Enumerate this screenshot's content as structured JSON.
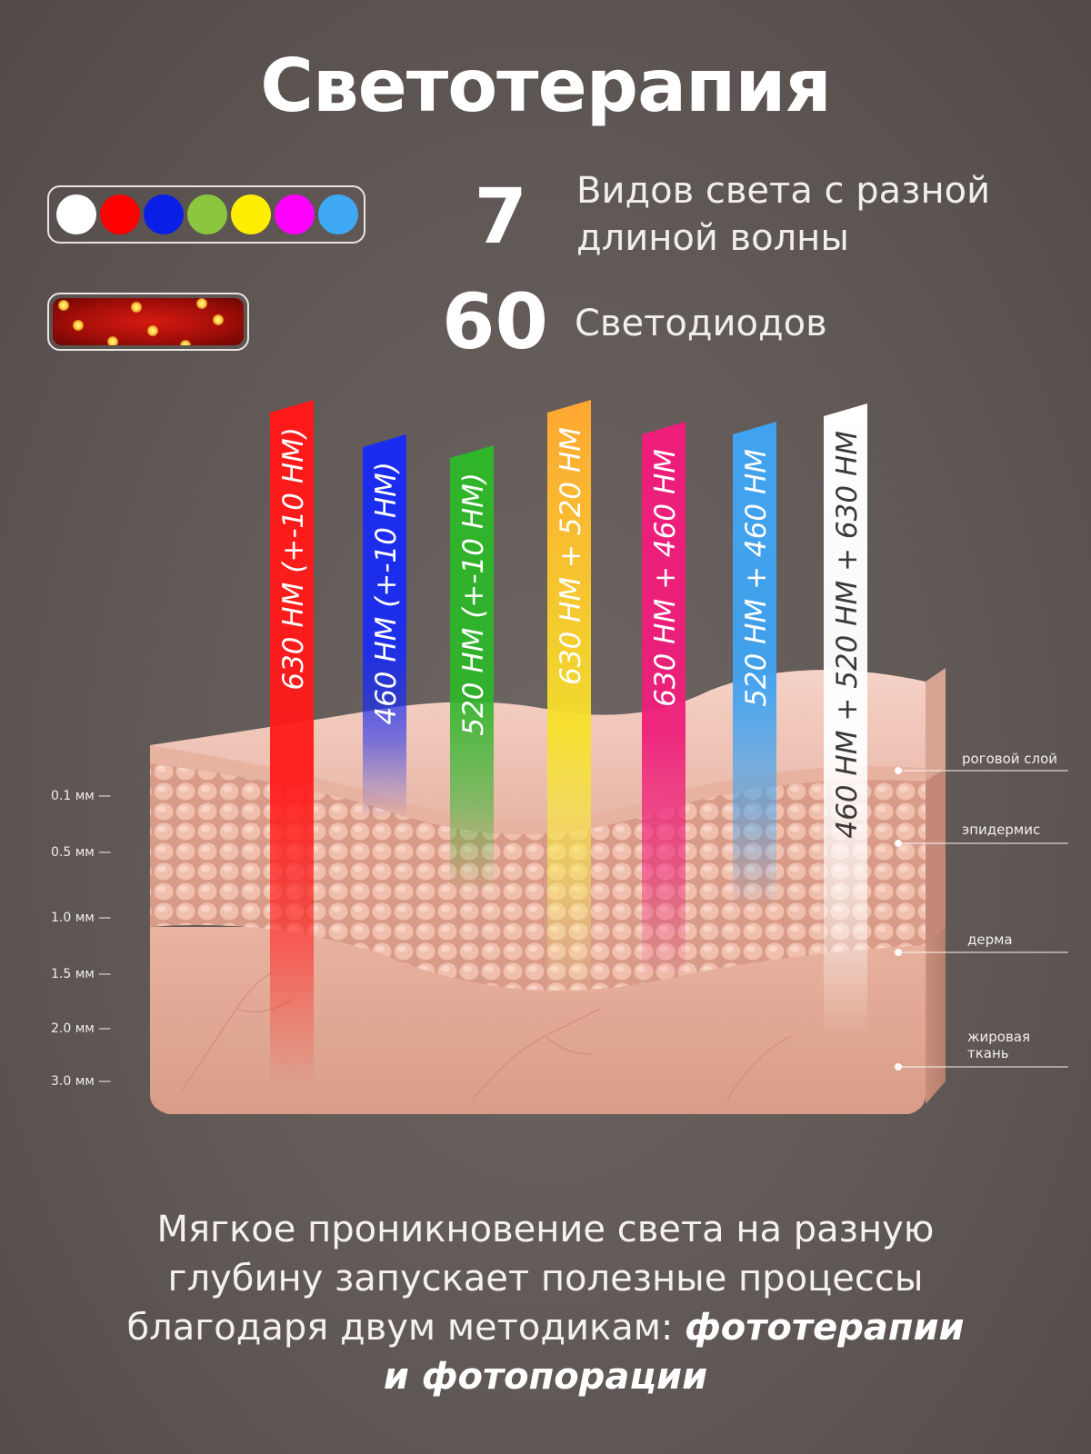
{
  "title": "Светотерапия",
  "colors": {
    "dots": [
      "#ffffff",
      "#ff0000",
      "#0a1fe6",
      "#8cc63f",
      "#ffee00",
      "#ff00ff",
      "#3fa9f5"
    ]
  },
  "stats": [
    {
      "number": "7",
      "line1": "Видов света с разной",
      "line2": "длиной волны"
    },
    {
      "number": "60",
      "line1": "Светодиодов",
      "line2": ""
    }
  ],
  "beams": [
    {
      "label": "630 НМ (+-10 НМ)",
      "color": "#ff1a1a",
      "penetration": "3.0 мм"
    },
    {
      "label": "460 НМ (+-10 НМ)",
      "color": "#1a2cf0",
      "penetration": ""
    },
    {
      "label": "520 НМ (+-10 НМ)",
      "color": "#2fb52a",
      "penetration": ""
    },
    {
      "label": "630 НМ + 520 НМ",
      "color": "#ffae2a",
      "penetration": ""
    },
    {
      "label": "630 НМ + 460 НМ",
      "color": "#ee1e7a",
      "penetration": ""
    },
    {
      "label": "520 НМ + 460 НМ",
      "color": "#41a3f0",
      "penetration": ""
    },
    {
      "label": "460 НМ + 520 НМ + 630 НМ",
      "color": "#ffffff",
      "penetration": ""
    }
  ],
  "depths": [
    "0.1 мм —",
    "0.5 мм —",
    "1.0 мм —",
    "1.5 мм —",
    "2.0 мм —",
    "3.0 мм —"
  ],
  "layers": [
    "роговой слой",
    "эпидермис",
    "дерма",
    "жировая",
    "ткань"
  ],
  "bottom": {
    "line1": "Мягкое проникновение света на разную",
    "line2": "глубину запускает полезные процессы",
    "line3_prefix": "благодаря двум методикам: ",
    "line3_em": "фототерапии",
    "line4_em": "и фотопорации"
  }
}
